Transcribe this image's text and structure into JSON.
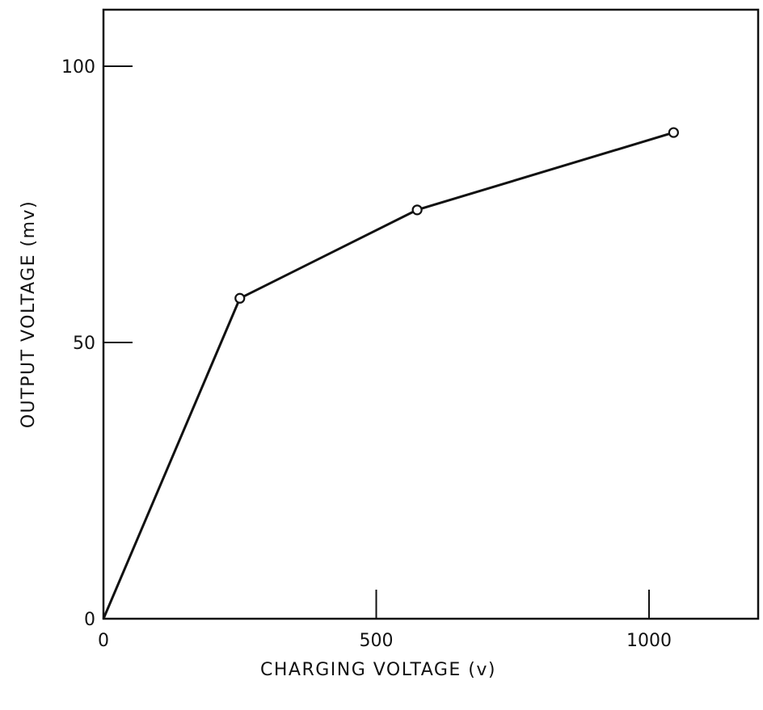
{
  "chart_data": {
    "type": "line",
    "title": "",
    "xlabel": "CHARGING VOLTAGE (v)",
    "ylabel": "OUTPUT VOLTAGE (mv)",
    "xlim": [
      0,
      1200
    ],
    "ylim": [
      0,
      100
    ],
    "x_ticks": [
      0,
      500,
      1000
    ],
    "y_ticks": [
      0,
      50,
      100
    ],
    "x_tick_labels": [
      "0",
      "500",
      "1000"
    ],
    "y_tick_labels": [
      "0",
      "50",
      "100"
    ],
    "grid": false,
    "legend": "none",
    "series": [
      {
        "x": [
          0,
          250,
          575,
          1045
        ],
        "y": [
          0,
          58,
          74,
          88
        ],
        "markers": [
          false,
          true,
          true,
          true
        ]
      }
    ]
  }
}
